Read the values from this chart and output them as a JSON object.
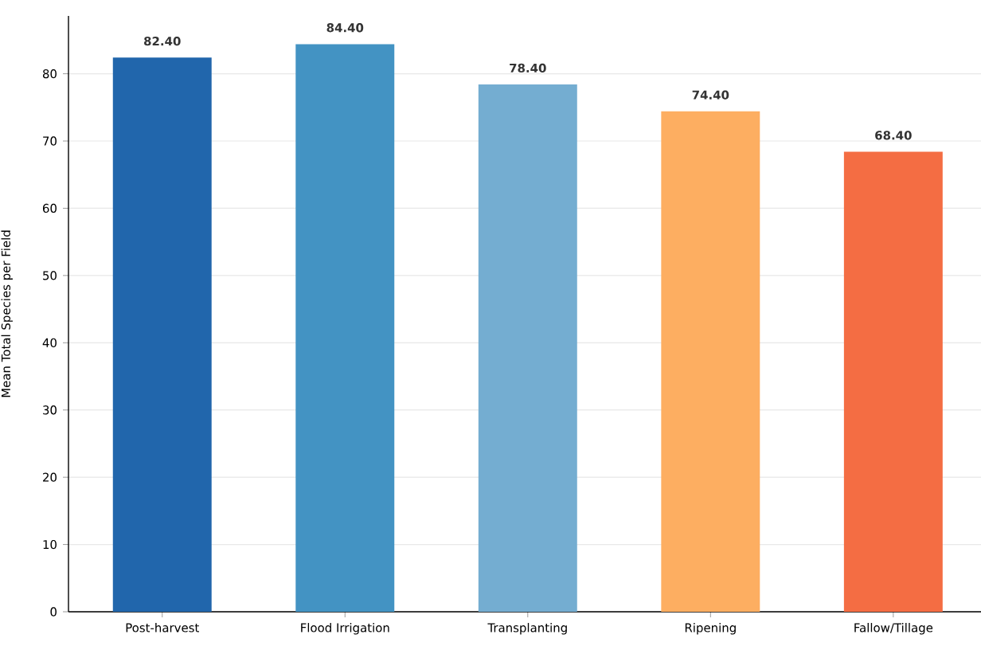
{
  "chart_data": {
    "type": "bar",
    "ylabel": "Mean Total Species per Field",
    "categories": [
      "Post-harvest",
      "Flood Irrigation",
      "Transplanting",
      "Ripening",
      "Fallow/Tillage"
    ],
    "values": [
      82.4,
      84.4,
      78.4,
      74.4,
      68.4
    ],
    "value_labels": [
      "82.40",
      "84.40",
      "78.40",
      "74.40",
      "68.40"
    ],
    "colors": [
      "#2166ac",
      "#4393c3",
      "#74add1",
      "#fdae61",
      "#f46d43"
    ],
    "ylim": [
      0,
      88.6
    ],
    "yticks": [
      0,
      10,
      20,
      30,
      40,
      50,
      60,
      70,
      80
    ],
    "grid": "y"
  }
}
